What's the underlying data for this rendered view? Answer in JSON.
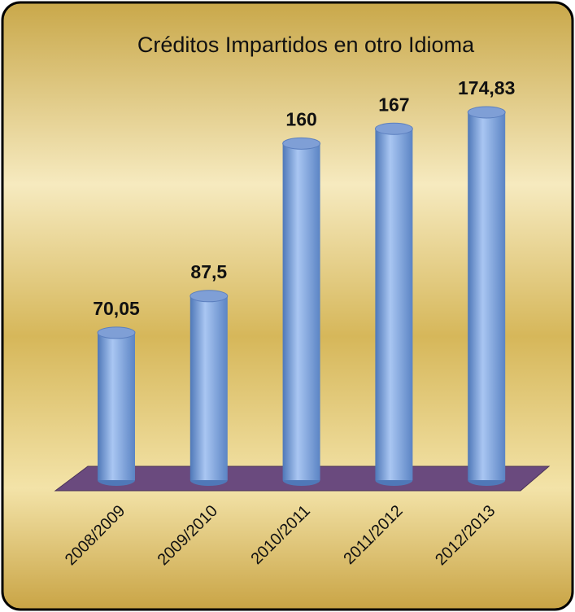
{
  "chart_data": {
    "type": "bar3d",
    "title": "Créditos Impartidos en otro Idioma",
    "categories": [
      "2008/2009",
      "2009/2010",
      "2010/2011",
      "2011/2012",
      "2012/2013"
    ],
    "values": [
      70.05,
      87.5,
      160,
      167,
      174.83
    ],
    "value_labels": [
      "70,05",
      "87,5",
      "160",
      "167",
      "174,83"
    ],
    "color": "#7fa6e0",
    "floor_color": "#6a4a7e"
  }
}
